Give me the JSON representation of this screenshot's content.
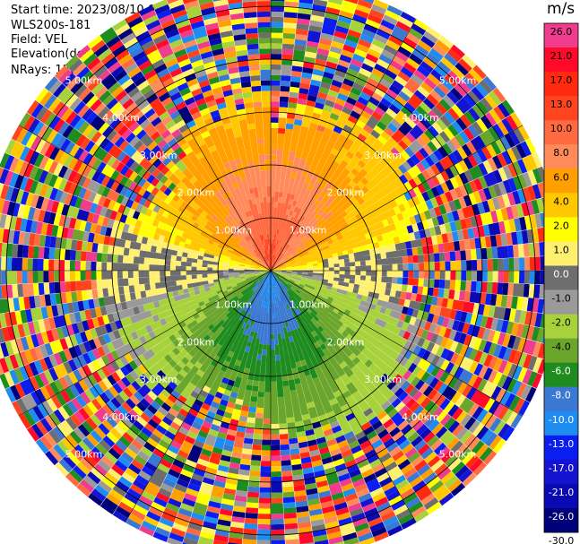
{
  "header": {
    "start_time": "Start time: 2023/08/10 04:49:51",
    "instrument": "WLS200s-181",
    "field": "Field: VEL",
    "elevation": "Elevation(deg): 35.30",
    "nrays": "NRays: 120"
  },
  "colorbar": {
    "unit": "m/s",
    "ticks": [
      "26.0",
      "21.0",
      "17.0",
      "13.0",
      "10.0",
      "8.0",
      "6.0",
      "4.0",
      "2.0",
      "1.0",
      "0.0",
      "-1.0",
      "-2.0",
      "-4.0",
      "-6.0",
      "-8.0",
      "-10.0",
      "-13.0",
      "-17.0",
      "-21.0",
      "-26.0",
      "-30.0"
    ],
    "colors": [
      "#f03c8c",
      "#ff0a28",
      "#ff2a10",
      "#ff4420",
      "#ff6a40",
      "#ff8a5a",
      "#ffa000",
      "#ffc800",
      "#ffff00",
      "#fff070",
      "#6e6e6e",
      "#9a9a9a",
      "#a8d23c",
      "#6aa52c",
      "#1f8c1f",
      "#3a78d2",
      "#1e8cf0",
      "#0a1ef0",
      "#1414d0",
      "#0a0ab4",
      "#000078"
    ]
  },
  "chart_data": {
    "type": "polar-ppi",
    "field": "VEL",
    "nrays": 120,
    "range_rings_km": [
      1.0,
      2.0,
      3.0,
      4.0,
      5.0
    ],
    "ring_labels": [
      "1.00km",
      "2.00km",
      "3.00km",
      "4.00km",
      "5.00km"
    ],
    "max_range_km": 5.5,
    "colorbar_range": [
      -30.0,
      26.0
    ],
    "pattern": "positive (towards red/orange) in northern half near center, negative (blue/green) in southern half; noisy random colors beyond ~2.5-3 km"
  }
}
